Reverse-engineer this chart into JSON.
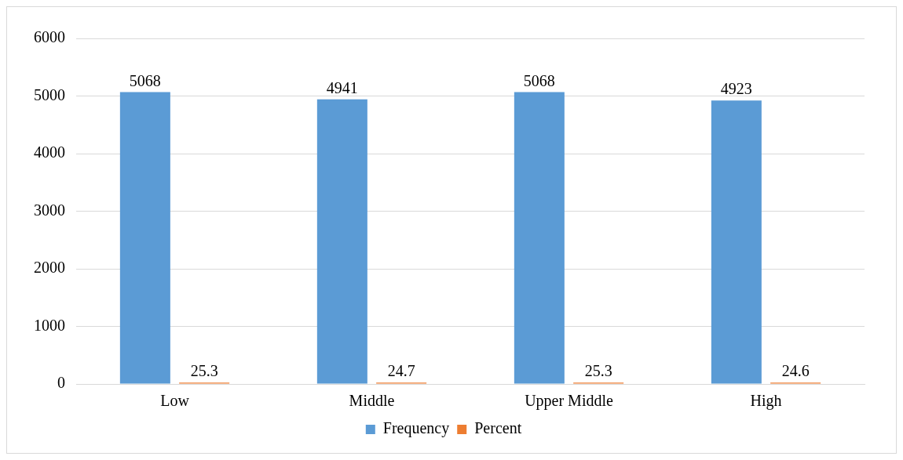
{
  "chart_data": {
    "type": "bar",
    "categories": [
      "Low",
      "Middle",
      "Upper Middle",
      "High"
    ],
    "series": [
      {
        "name": "Frequency",
        "color": "#5b9bd5",
        "values": [
          5068,
          4941,
          5068,
          4923
        ]
      },
      {
        "name": "Percent",
        "color": "#ed7d31",
        "values": [
          25.3,
          24.7,
          25.3,
          24.6
        ]
      }
    ],
    "ylim": [
      0,
      6000
    ],
    "yticks": [
      0,
      1000,
      2000,
      3000,
      4000,
      5000,
      6000
    ],
    "grid": "y",
    "legend": "bottom",
    "data_labels": true
  }
}
